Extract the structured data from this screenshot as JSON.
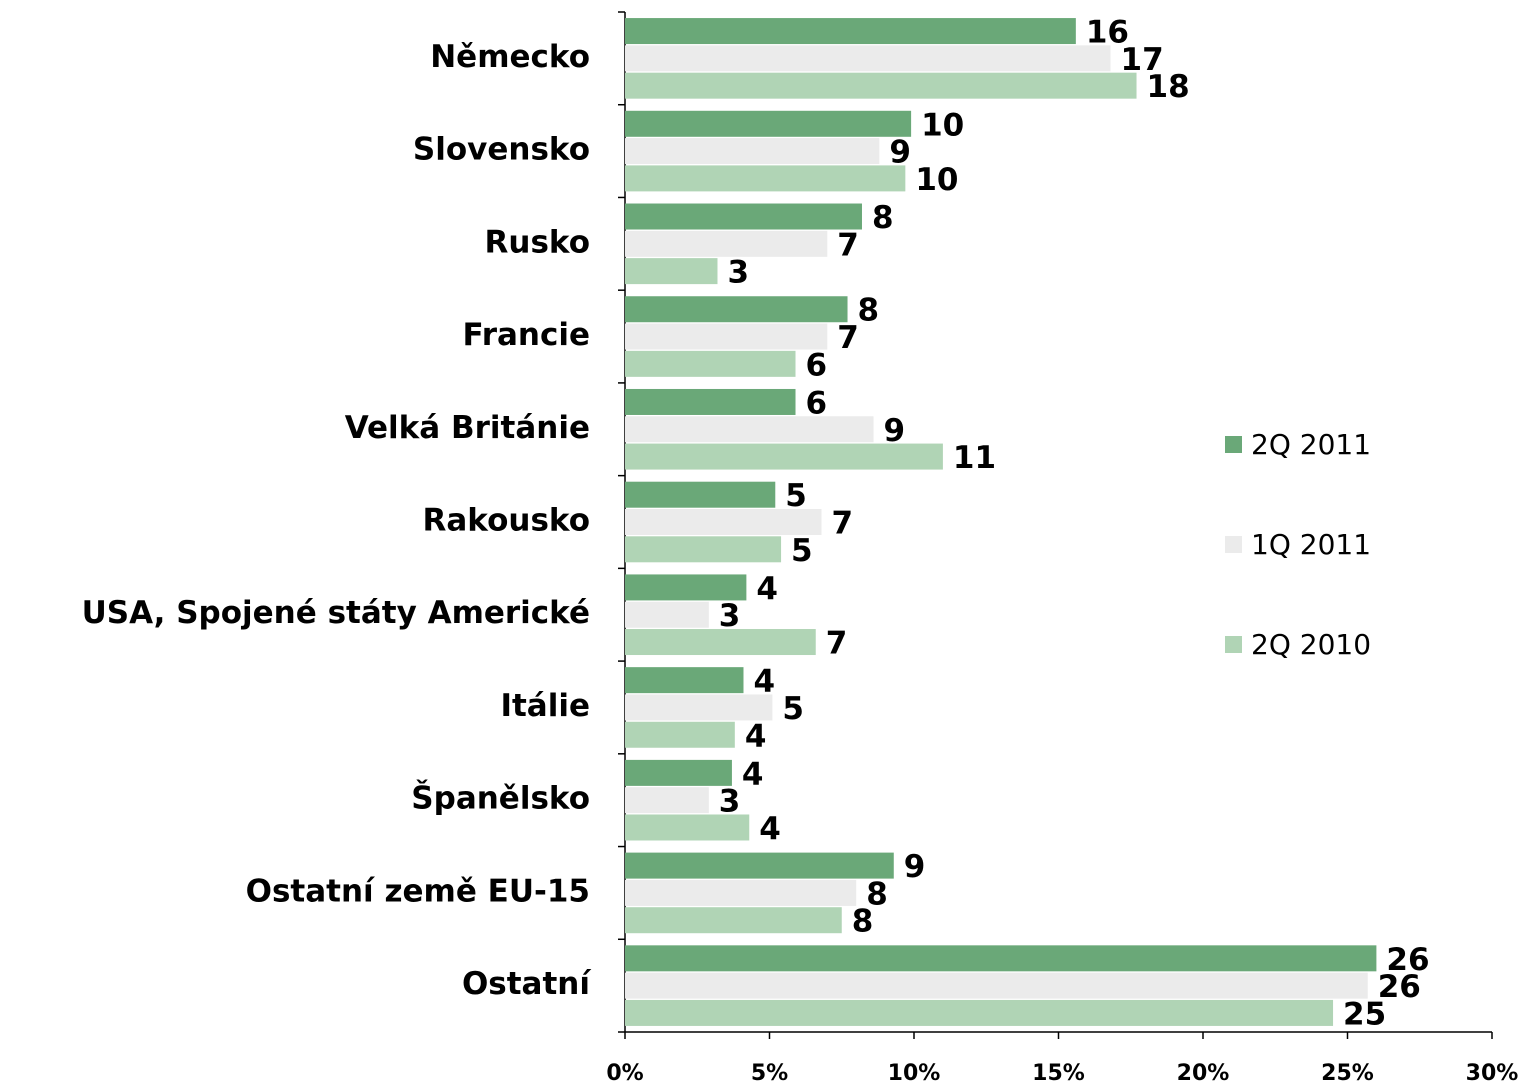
{
  "chart_data": {
    "type": "hbar",
    "categories": [
      "Německo",
      "Slovensko",
      "Rusko",
      "Francie",
      "Velká Británie",
      "Rakousko",
      "USA, Spojené státy Americké",
      "Itálie",
      "Španělsko",
      "Ostatní země EU-15",
      "Ostatní"
    ],
    "series": [
      {
        "name": "2Q 2011",
        "color": "#6aa878",
        "values": [
          15.6,
          9.9,
          8.2,
          7.7,
          5.9,
          5.2,
          4.2,
          4.1,
          3.7,
          9.3,
          26.0
        ],
        "value_labels": [
          "16",
          "10",
          "8",
          "8",
          "6",
          "5",
          "4",
          "4",
          "4",
          "9",
          "26"
        ]
      },
      {
        "name": "1Q 2011",
        "color": "#ebebeb",
        "values": [
          16.8,
          8.8,
          7.0,
          7.0,
          8.6,
          6.8,
          2.9,
          5.1,
          2.9,
          8.0,
          25.7
        ],
        "value_labels": [
          "17",
          "9",
          "7",
          "7",
          "9",
          "7",
          "3",
          "5",
          "3",
          "8",
          "26"
        ]
      },
      {
        "name": "2Q 2010",
        "color": "#b0d4b5",
        "values": [
          17.7,
          9.7,
          3.2,
          5.9,
          11.0,
          5.4,
          6.6,
          3.8,
          4.3,
          7.5,
          24.5
        ],
        "value_labels": [
          "18",
          "10",
          "3",
          "6",
          "11",
          "5",
          "7",
          "4",
          "4",
          "8",
          "25"
        ]
      }
    ],
    "xlim": [
      0,
      30
    ],
    "xticks": [
      {
        "value": 0,
        "label": "0%"
      },
      {
        "value": 5,
        "label": "5%"
      },
      {
        "value": 10,
        "label": "10%"
      },
      {
        "value": 15,
        "label": "15%"
      },
      {
        "value": 20,
        "label": "20%"
      },
      {
        "value": 25,
        "label": "25%"
      },
      {
        "value": 30,
        "label": "30%"
      }
    ],
    "legend": "right"
  }
}
